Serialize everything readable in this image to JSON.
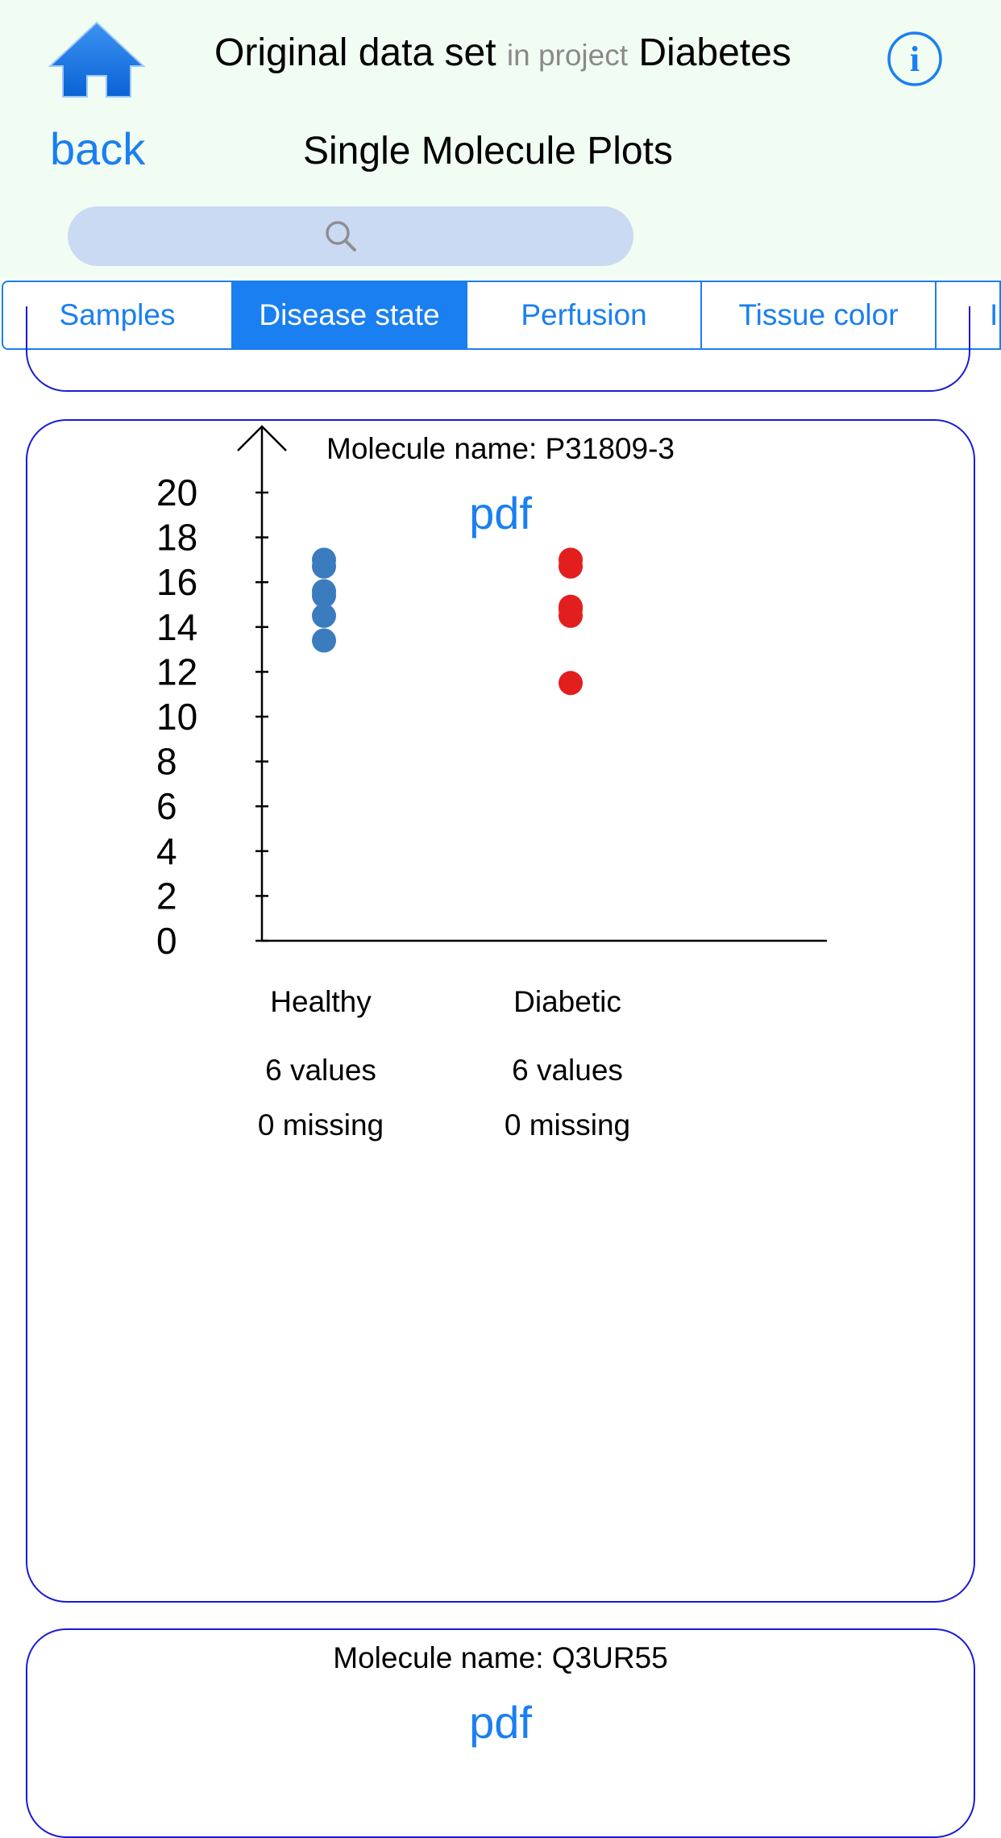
{
  "header": {
    "dataset_title": "Original data set",
    "in_project": "in project",
    "project_name": "Diabetes",
    "back_label": "back",
    "page_title": "Single Molecule Plots"
  },
  "search": {
    "placeholder": ""
  },
  "tabs": [
    {
      "label": "Samples",
      "active": false
    },
    {
      "label": "Disease state",
      "active": true
    },
    {
      "label": "Perfusion",
      "active": false
    },
    {
      "label": "Tissue color",
      "active": false
    },
    {
      "label": "I",
      "active": false
    }
  ],
  "colors": {
    "accent": "#1a7ff0",
    "card_border": "#1a1ad6",
    "header_bg": "#f1fdf3",
    "search_bg": "#cbdaf3",
    "healthy": "#3b7cbf",
    "diabetic": "#e31e1e"
  },
  "cards": [
    {
      "molecule_name": "Molecule name: P31809-3",
      "pdf_label": "pdf"
    },
    {
      "molecule_name": "Molecule name: Q3UR55",
      "pdf_label": "pdf"
    }
  ],
  "chart_data": {
    "type": "scatter",
    "title": "",
    "xlabel": "",
    "ylabel": "",
    "ylim": [
      0,
      20
    ],
    "y_ticks": [
      0,
      2,
      4,
      6,
      8,
      10,
      12,
      14,
      16,
      18,
      20
    ],
    "grid": false,
    "categories": [
      "Healthy",
      "Diabetic"
    ],
    "series": [
      {
        "category": "Healthy",
        "values": [
          17.0,
          16.7,
          15.6,
          15.4,
          14.5,
          13.4
        ],
        "count_label": "6 values",
        "missing_label": "0 missing"
      },
      {
        "category": "Diabetic",
        "values": [
          17.0,
          16.7,
          14.9,
          14.8,
          14.5,
          11.5
        ],
        "count_label": "6 values",
        "missing_label": "0 missing"
      }
    ]
  }
}
